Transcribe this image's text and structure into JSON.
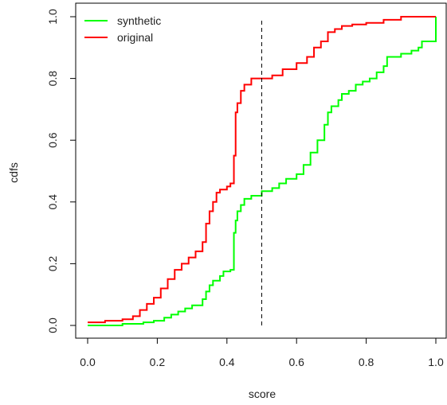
{
  "chart_data": {
    "type": "line",
    "title": "",
    "xlabel": "score",
    "ylabel": "cdfs",
    "xlim": [
      0.0,
      1.0
    ],
    "ylim": [
      0.0,
      1.0
    ],
    "x_ticks": [
      "0.0",
      "0.2",
      "0.4",
      "0.6",
      "0.8",
      "1.0"
    ],
    "y_ticks": [
      "0.0",
      "0.2",
      "0.4",
      "0.6",
      "0.8",
      "1.0"
    ],
    "grid": false,
    "legend_position": "top-left",
    "reference_line": {
      "x": 0.5,
      "style": "dashed",
      "color": "#000000"
    },
    "series": [
      {
        "name": "synthetic",
        "color": "#00ff00",
        "step": true,
        "x": [
          0.0,
          0.1,
          0.16,
          0.19,
          0.22,
          0.24,
          0.26,
          0.28,
          0.3,
          0.33,
          0.34,
          0.35,
          0.36,
          0.38,
          0.39,
          0.41,
          0.42,
          0.425,
          0.43,
          0.44,
          0.45,
          0.47,
          0.5,
          0.53,
          0.55,
          0.57,
          0.6,
          0.62,
          0.64,
          0.66,
          0.68,
          0.69,
          0.7,
          0.72,
          0.73,
          0.75,
          0.77,
          0.79,
          0.81,
          0.83,
          0.85,
          0.86,
          0.9,
          0.93,
          0.95,
          0.96,
          0.98,
          1.0
        ],
        "y": [
          0.0,
          0.005,
          0.01,
          0.015,
          0.025,
          0.035,
          0.045,
          0.055,
          0.065,
          0.085,
          0.11,
          0.13,
          0.145,
          0.16,
          0.175,
          0.18,
          0.3,
          0.34,
          0.37,
          0.39,
          0.41,
          0.42,
          0.435,
          0.445,
          0.46,
          0.475,
          0.49,
          0.52,
          0.56,
          0.6,
          0.65,
          0.69,
          0.71,
          0.73,
          0.75,
          0.76,
          0.78,
          0.79,
          0.8,
          0.82,
          0.84,
          0.87,
          0.88,
          0.89,
          0.9,
          0.92,
          0.92,
          1.0
        ]
      },
      {
        "name": "original",
        "color": "#ff0000",
        "step": true,
        "x": [
          0.0,
          0.05,
          0.1,
          0.13,
          0.15,
          0.17,
          0.19,
          0.21,
          0.23,
          0.25,
          0.27,
          0.29,
          0.31,
          0.33,
          0.34,
          0.35,
          0.36,
          0.37,
          0.38,
          0.4,
          0.41,
          0.42,
          0.425,
          0.43,
          0.44,
          0.45,
          0.47,
          0.5,
          0.53,
          0.56,
          0.6,
          0.63,
          0.65,
          0.67,
          0.69,
          0.71,
          0.73,
          0.76,
          0.8,
          0.85,
          0.9,
          0.95,
          1.0
        ],
        "y": [
          0.01,
          0.015,
          0.02,
          0.03,
          0.05,
          0.07,
          0.09,
          0.12,
          0.15,
          0.18,
          0.2,
          0.22,
          0.24,
          0.27,
          0.33,
          0.37,
          0.4,
          0.43,
          0.44,
          0.45,
          0.46,
          0.55,
          0.69,
          0.72,
          0.76,
          0.78,
          0.8,
          0.8,
          0.81,
          0.83,
          0.85,
          0.87,
          0.9,
          0.92,
          0.95,
          0.96,
          0.97,
          0.975,
          0.98,
          0.99,
          1.0,
          1.0,
          1.0
        ]
      }
    ]
  }
}
